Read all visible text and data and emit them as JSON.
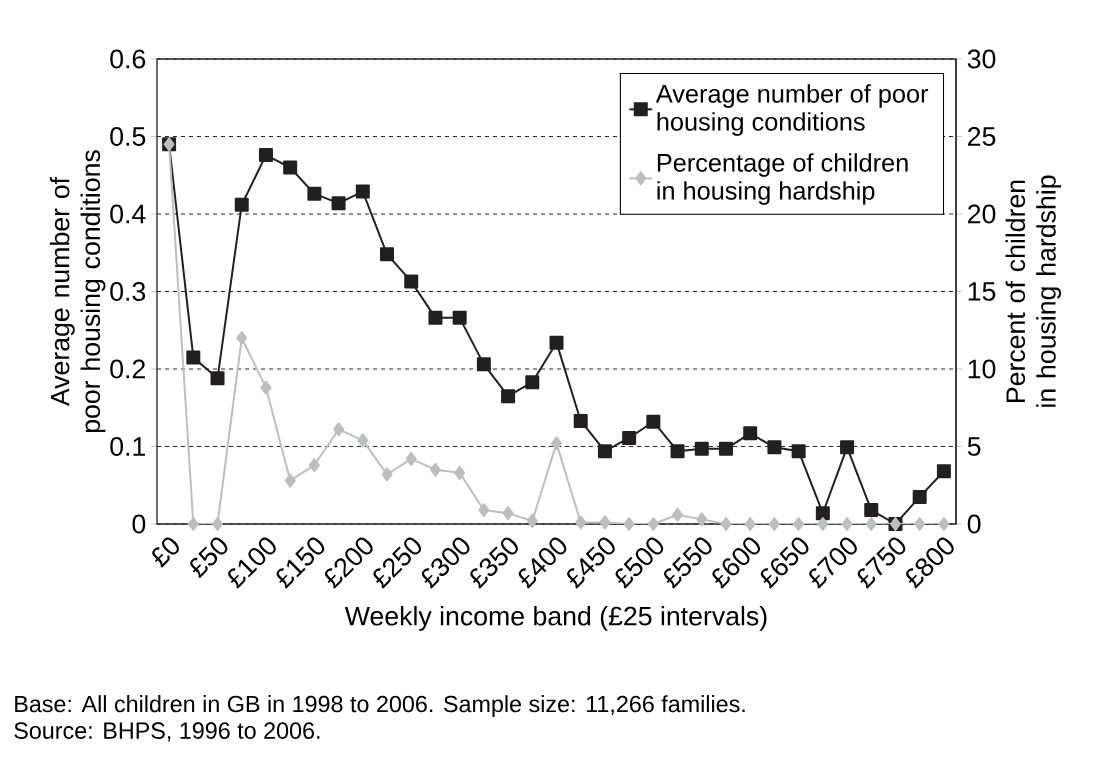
{
  "chart_data": {
    "type": "line",
    "categories": [
      "£0",
      null,
      "£50",
      null,
      "£100",
      null,
      "£150",
      null,
      "£200",
      null,
      "£250",
      null,
      "£300",
      null,
      "£350",
      null,
      "£400",
      null,
      "£450",
      null,
      "£500",
      null,
      "£550",
      null,
      "£600",
      null,
      "£650",
      null,
      "£700",
      null,
      "£750",
      null,
      "£800"
    ],
    "series": [
      {
        "name": "Average number of poor housing conditions",
        "color": "#231f20",
        "marker": "square",
        "values": [
          0.49,
          0.215,
          0.188,
          0.412,
          0.476,
          0.46,
          0.426,
          0.414,
          0.429,
          0.348,
          0.313,
          0.266,
          0.266,
          0.206,
          0.165,
          0.183,
          0.234,
          0.133,
          0.094,
          0.111,
          0.132,
          0.094,
          0.097,
          0.097,
          0.117,
          0.099,
          0.094,
          0.014,
          0.099,
          0.018,
          0,
          0.035,
          0.068
        ]
      },
      {
        "name": "Percentage of children in housing hardship",
        "color": "#bcbec0",
        "marker": "diamond",
        "axis": "y2",
        "values": [
          24.5,
          0,
          0,
          12,
          8.8,
          2.8,
          3.8,
          6.1,
          5.4,
          3.2,
          4.2,
          3.5,
          3.3,
          0.9,
          0.7,
          0.2,
          5.2,
          0.1,
          0.1,
          0,
          0,
          0.6,
          0.3,
          0,
          0,
          0,
          0,
          0,
          0,
          0,
          0,
          0,
          0
        ]
      }
    ],
    "xlabel": "Weekly income band (£25 intervals)",
    "ylabel": "Average number of poor housing conditions",
    "y2label": "Percent of children in housing hardship",
    "ylim": [
      0,
      0.6
    ],
    "yticks": [
      0,
      0.1,
      0.2,
      0.3,
      0.4,
      0.5,
      0.6
    ],
    "y2lim": [
      0,
      30
    ],
    "y2ticks": [
      0,
      5,
      10,
      15,
      20,
      25,
      30
    ],
    "grid": "y",
    "legend": "top right",
    "line_style": "solid",
    "annotations": [
      "Base: All children in GB in 1998 to 2006. Sample size: 11,266 families.",
      "Source: BHPS, 1996 to 2006."
    ]
  }
}
